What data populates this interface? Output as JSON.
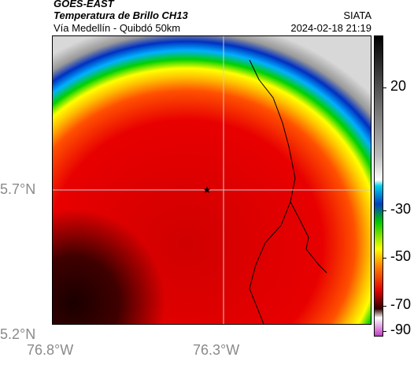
{
  "header": {
    "satellite": "GOES-EAST",
    "product": "Temperatura de Brillo CH13",
    "region": "Vía Medellín - Quibdó 50km",
    "agency": "SIATA",
    "datetime": "2024-02-18 21:19"
  },
  "map": {
    "lat_labels": [
      "5.7°N",
      "5.2°N"
    ],
    "lon_labels": [
      "76.8°W",
      "76.3°W"
    ],
    "marker": "star-marker",
    "grid": true
  },
  "colorbar": {
    "labels": [
      "20",
      "-30",
      "-50",
      "-70",
      "-90"
    ],
    "colors": {
      "white": "#ffffff",
      "gray": "#bdbdbd",
      "black": "#000000",
      "cyan": "#00d0e8",
      "blue": "#0040c0",
      "green": "#00c800",
      "yellow": "#ffff00",
      "orange": "#ff8000",
      "red": "#e00000",
      "dark_red": "#300000",
      "magenta": "#c040c0"
    }
  }
}
